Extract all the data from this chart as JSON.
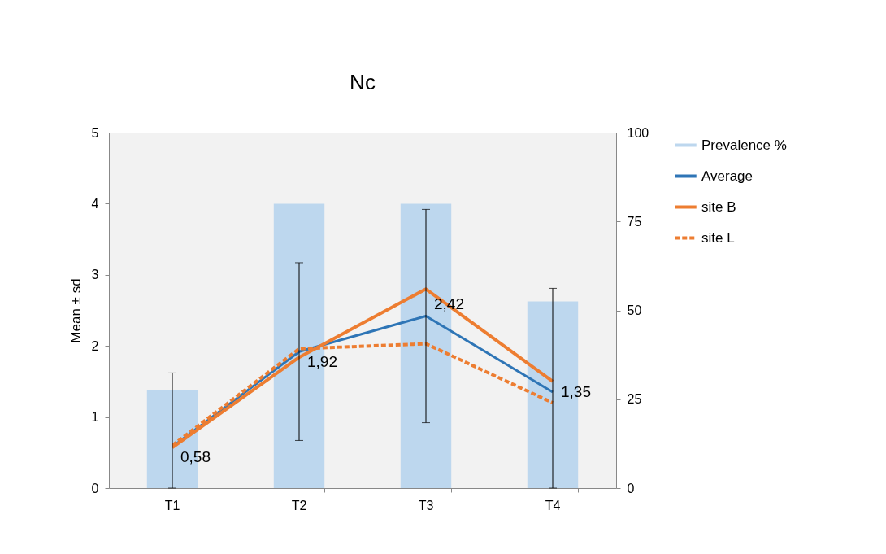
{
  "chart_data": {
    "type": "line",
    "title": "Nc",
    "ylabel": "Mean ± sd",
    "categories": [
      "T1",
      "T2",
      "T3",
      "T4"
    ],
    "series": [
      {
        "name": "Prevalence %",
        "type": "bar",
        "axis": "y2",
        "color": "#bdd7ee",
        "values": [
          27.5,
          80,
          80,
          52.5
        ]
      },
      {
        "name": "Average",
        "color": "#2e75b6",
        "values": [
          0.58,
          1.92,
          2.42,
          1.35
        ],
        "value_labels": [
          "0,58",
          "1,92",
          "2,42",
          "1,35"
        ],
        "errors": [
          [
            0,
            1.62
          ],
          1.25,
          1.5,
          [
            0,
            2.81
          ]
        ]
      },
      {
        "name": "site B",
        "color": "#ed7d31",
        "values": [
          0.57,
          1.84,
          2.8,
          1.5
        ]
      },
      {
        "name": "site L",
        "color": "#ed7d31",
        "line_style": "dashed",
        "values": [
          0.6,
          1.96,
          2.03,
          1.2
        ]
      }
    ],
    "ylim": [
      0,
      5
    ],
    "yticks": [
      0,
      1,
      2,
      3,
      4,
      5
    ],
    "y2lim": [
      0,
      100
    ],
    "y2ticks": [
      0,
      25,
      50,
      75,
      100
    ],
    "grid": false,
    "legend": "right"
  }
}
